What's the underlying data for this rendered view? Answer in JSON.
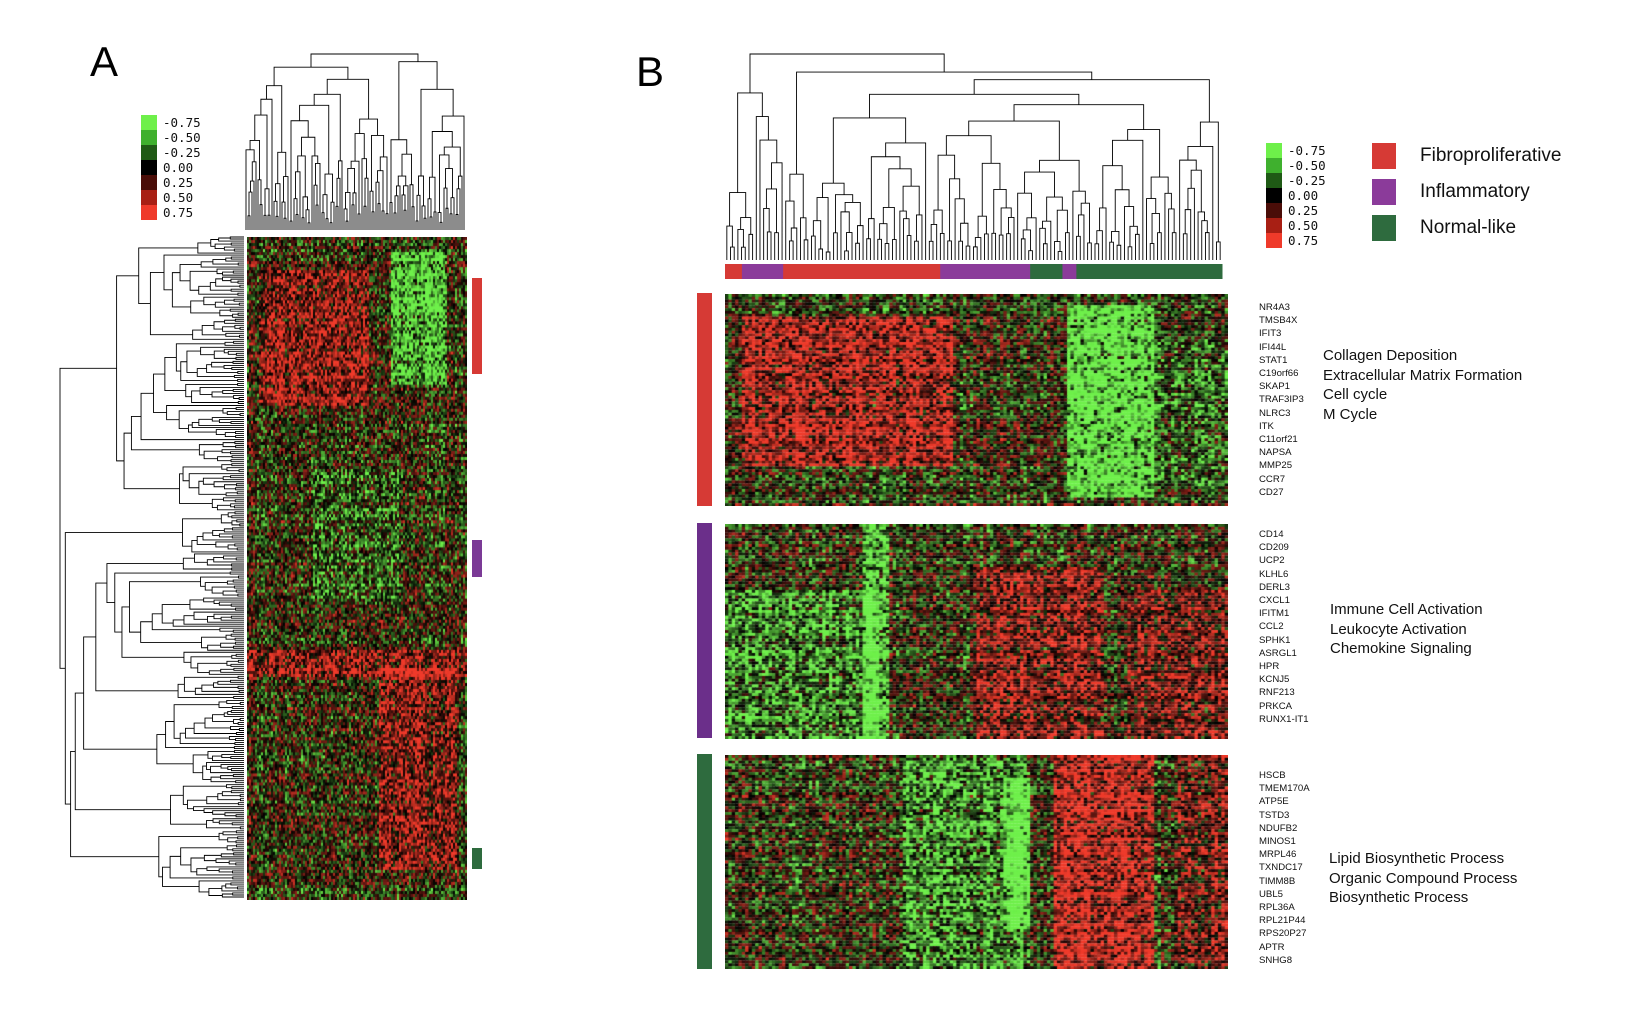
{
  "chart_data": [
    {
      "panel": "A",
      "type": "heatmap",
      "color_scale": {
        "values": [
          "-0.75",
          "-0.50",
          "-0.25",
          "0.00",
          "0.25",
          "0.50",
          "0.75"
        ],
        "colors": [
          "#6ef04a",
          "#3fb02e",
          "#1f5a15",
          "#000000",
          "#4a0d08",
          "#a81f14",
          "#ef3a2a"
        ]
      },
      "row_dendrogram": true,
      "column_dendrogram": true,
      "cluster_markers": [
        {
          "cluster": "Fibroproliferative",
          "color": "#d63a35"
        },
        {
          "cluster": "Inflammatory",
          "color": "#7b3a96"
        },
        {
          "cluster": "Normal-like",
          "color": "#2e6b3e"
        }
      ]
    },
    {
      "panel": "B",
      "type": "heatmap",
      "color_scale": {
        "values": [
          "-0.75",
          "-0.50",
          "-0.25",
          "0.00",
          "0.25",
          "0.50",
          "0.75"
        ],
        "colors": [
          "#6ef04a",
          "#3fb02e",
          "#1f5a15",
          "#000000",
          "#4a0d08",
          "#a81f14",
          "#ef3a2a"
        ]
      },
      "legend": [
        {
          "label": "Fibroproliferative",
          "color": "#d63a35"
        },
        {
          "label": "Inflammatory",
          "color": "#8b3b9a"
        },
        {
          "label": "Normal-like",
          "color": "#2e6b3e"
        }
      ],
      "sample_annotation": [
        "Fibroproliferative",
        "Inflammatory",
        "Fibroproliferative",
        "Inflammatory",
        "Normal-like",
        "Inflammatory",
        "Normal-like"
      ],
      "sample_annotation_fractions": [
        0.034,
        0.083,
        0.316,
        0.181,
        0.065,
        0.028,
        0.293
      ],
      "gene_clusters": [
        {
          "cluster": "Fibroproliferative",
          "genes": [
            "NR4A3",
            "TMSB4X",
            "IFIT3",
            "IFI44L",
            "STAT1",
            "C19orf66",
            "SKAP1",
            "TRAF3IP3",
            "NLRC3",
            "ITK",
            "C11orf21",
            "NAPSA",
            "MMP25",
            "CCR7",
            "CD27"
          ],
          "pathways": [
            "Collagen Deposition",
            "Extracellular Matrix Formation",
            "Cell cycle",
            "M Cycle"
          ]
        },
        {
          "cluster": "Inflammatory",
          "genes": [
            "CD14",
            "CD209",
            "UCP2",
            "KLHL6",
            "DERL3",
            "CXCL1",
            "IFITM1",
            "CCL2",
            "SPHK1",
            "ASRGL1",
            "HPR",
            "KCNJ5",
            "RNF213",
            "PRKCA",
            "RUNX1-IT1"
          ],
          "pathways": [
            "Immune Cell Activation",
            "Leukocyte Activation",
            "Chemokine Signaling"
          ]
        },
        {
          "cluster": "Normal-like",
          "genes": [
            "HSCB",
            "TMEM170A",
            "ATP5E",
            "TSTD3",
            "NDUFB2",
            "MINOS1",
            "MRPL46",
            "TXNDC17",
            "TIMM8B",
            "UBL5",
            "RPL36A",
            "RPL21P44",
            "RPS20P27",
            "APTR",
            "SNHG8"
          ],
          "pathways": [
            "Lipid Biosynthetic Process",
            "Organic Compound Process",
            "Biosynthetic Process"
          ]
        }
      ]
    }
  ]
}
